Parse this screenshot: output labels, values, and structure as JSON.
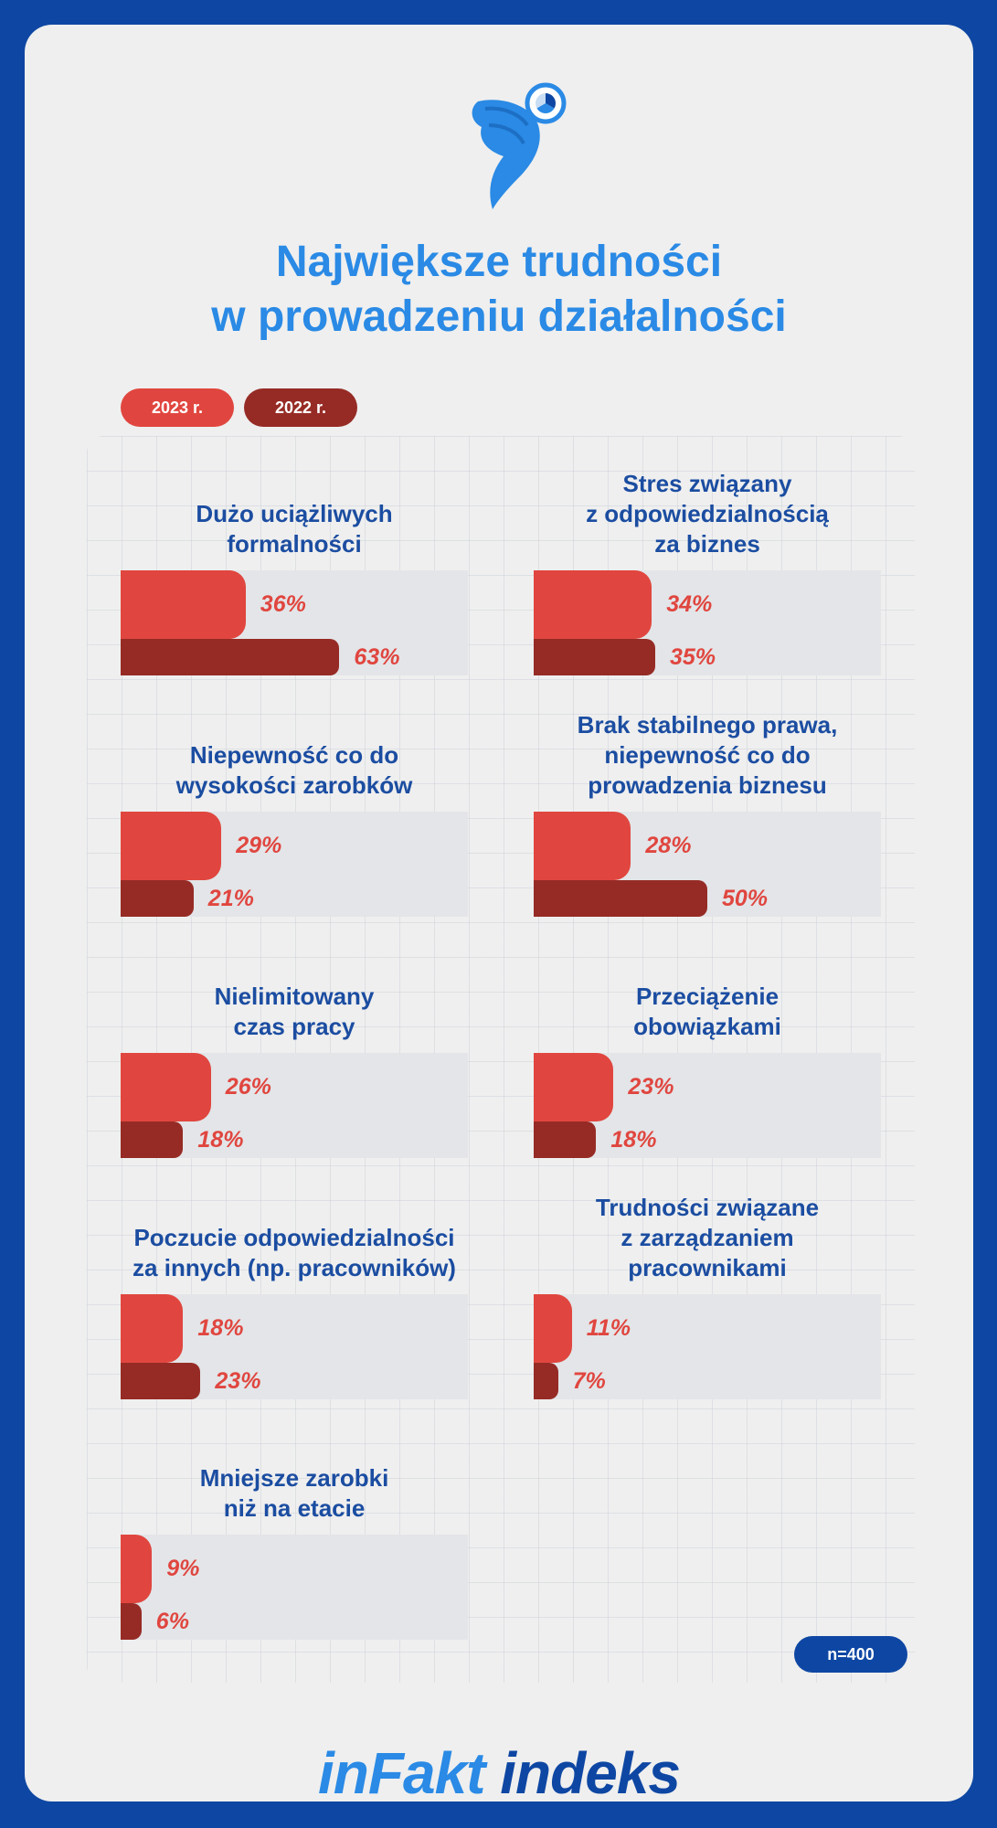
{
  "colors": {
    "frame": "#0e47a3",
    "card": "#efefef",
    "title": "#2a8ae5",
    "label": "#1b4da1",
    "bar_2023": "#e0463f",
    "bar_2022": "#962b25",
    "value_text": "#e0463f",
    "track": "#e3e5e8",
    "badge": "#0e47a3",
    "brand_light": "#2a8ae5",
    "brand_dark": "#0e47a3"
  },
  "logo": {
    "icon": "wing-clock-icon"
  },
  "title_lines": [
    "Największe trudności",
    "w prowadzeniu działalności"
  ],
  "legend": {
    "series_2023": "2023 r.",
    "series_2022": "2022 r."
  },
  "sample_badge": "n=400",
  "brand": {
    "part1": "inFakt",
    "part2": " indeks"
  },
  "chart_data": {
    "type": "bar",
    "orientation": "horizontal",
    "value_max": 100,
    "series_names": [
      "2023 r.",
      "2022 r."
    ],
    "items": [
      {
        "label_lines": [
          "Dużo uciążliwych",
          "formalności"
        ],
        "v2023": 36,
        "v2022": 63,
        "t2023": "36%",
        "t2022": "63%"
      },
      {
        "label_lines": [
          "Stres związany",
          "z odpowiedzialnością",
          "za biznes"
        ],
        "v2023": 34,
        "v2022": 35,
        "t2023": "34%",
        "t2022": "35%"
      },
      {
        "label_lines": [
          "Niepewność co do",
          "wysokości zarobków"
        ],
        "v2023": 29,
        "v2022": 21,
        "t2023": "29%",
        "t2022": "21%"
      },
      {
        "label_lines": [
          "Brak stabilnego prawa,",
          "niepewność co do",
          "prowadzenia biznesu"
        ],
        "v2023": 28,
        "v2022": 50,
        "t2023": "28%",
        "t2022": "50%"
      },
      {
        "label_lines": [
          "Nielimitowany",
          "czas pracy"
        ],
        "v2023": 26,
        "v2022": 18,
        "t2023": "26%",
        "t2022": "18%"
      },
      {
        "label_lines": [
          "Przeciążenie",
          "obowiązkami"
        ],
        "v2023": 23,
        "v2022": 18,
        "t2023": "23%",
        "t2022": "18%"
      },
      {
        "label_lines": [
          "Poczucie odpowiedzialności",
          "za innych (np. pracowników)"
        ],
        "v2023": 18,
        "v2022": 23,
        "t2023": "18%",
        "t2022": "23%"
      },
      {
        "label_lines": [
          "Trudności związane",
          "z zarządzaniem",
          "pracownikami"
        ],
        "v2023": 11,
        "v2022": 7,
        "t2023": "11%",
        "t2022": "7%"
      },
      {
        "label_lines": [
          "Mniejsze zarobki",
          "niż na etacie"
        ],
        "v2023": 9,
        "v2022": 6,
        "t2023": "9%",
        "t2022": "6%"
      }
    ]
  }
}
